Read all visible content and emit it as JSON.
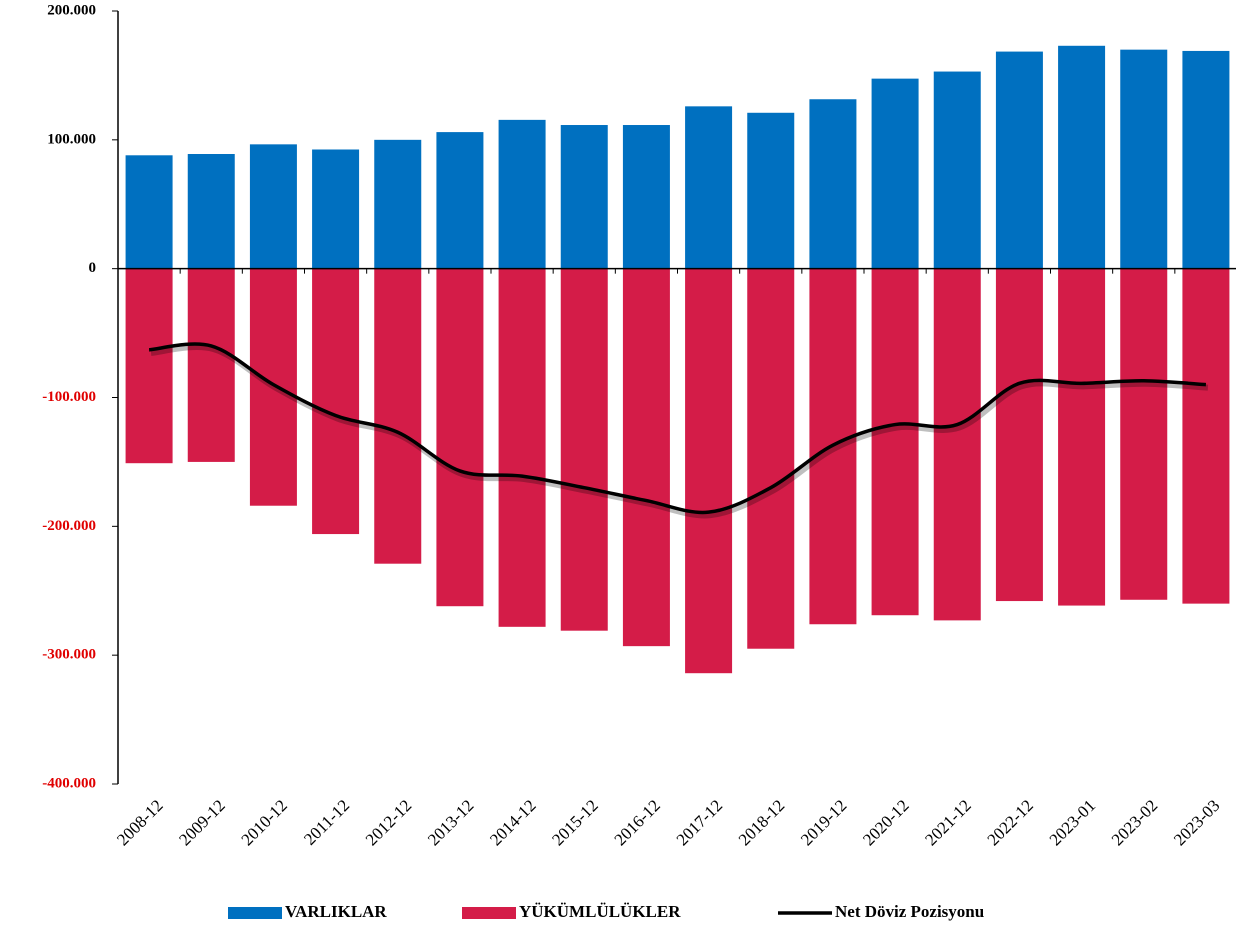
{
  "chart_data": {
    "type": "bar_line",
    "categories": [
      "2008-12",
      "2009-12",
      "2010-12",
      "2011-12",
      "2012-12",
      "2013-12",
      "2014-12",
      "2015-12",
      "2016-12",
      "2017-12",
      "2018-12",
      "2019-12",
      "2020-12",
      "2021-12",
      "2022-12",
      "2023-01",
      "2023-02",
      "2023-03"
    ],
    "series": [
      {
        "name": "VARLIKLAR",
        "color": "#0070c0",
        "kind": "bar",
        "values": [
          88000,
          89000,
          96500,
          92500,
          100000,
          106000,
          115500,
          111500,
          111500,
          126000,
          121000,
          131500,
          147500,
          153000,
          168500,
          173000,
          170000,
          169000
        ]
      },
      {
        "name": "YÜKÜMLÜLÜKLER",
        "color": "#d41c48",
        "kind": "bar",
        "values": [
          -151000,
          -150000,
          -184000,
          -206000,
          -229000,
          -262000,
          -278000,
          -281000,
          -293000,
          -314000,
          -295000,
          -276000,
          -269000,
          -273000,
          -258000,
          -261500,
          -257000,
          -260000
        ]
      },
      {
        "name": "Net Döviz Pozisyonu",
        "color": "#000000",
        "kind": "line",
        "values": [
          -63000,
          -60000,
          -90000,
          -114000,
          -127000,
          -157000,
          -161000,
          -170000,
          -180000,
          -189000,
          -170000,
          -137000,
          -121000,
          -121000,
          -89000,
          -89000,
          -87000,
          -90000
        ]
      }
    ],
    "ylim": [
      -400000,
      200000
    ],
    "yticks": [
      {
        "value": -400000,
        "label": "-400.000"
      },
      {
        "value": -300000,
        "label": "-300.000"
      },
      {
        "value": -200000,
        "label": "-200.000"
      },
      {
        "value": -100000,
        "label": "-100.000"
      },
      0,
      {
        "value": 100000,
        "label": "100.000"
      },
      {
        "value": 200000,
        "label": "200.000"
      }
    ],
    "legend": "bottom"
  }
}
